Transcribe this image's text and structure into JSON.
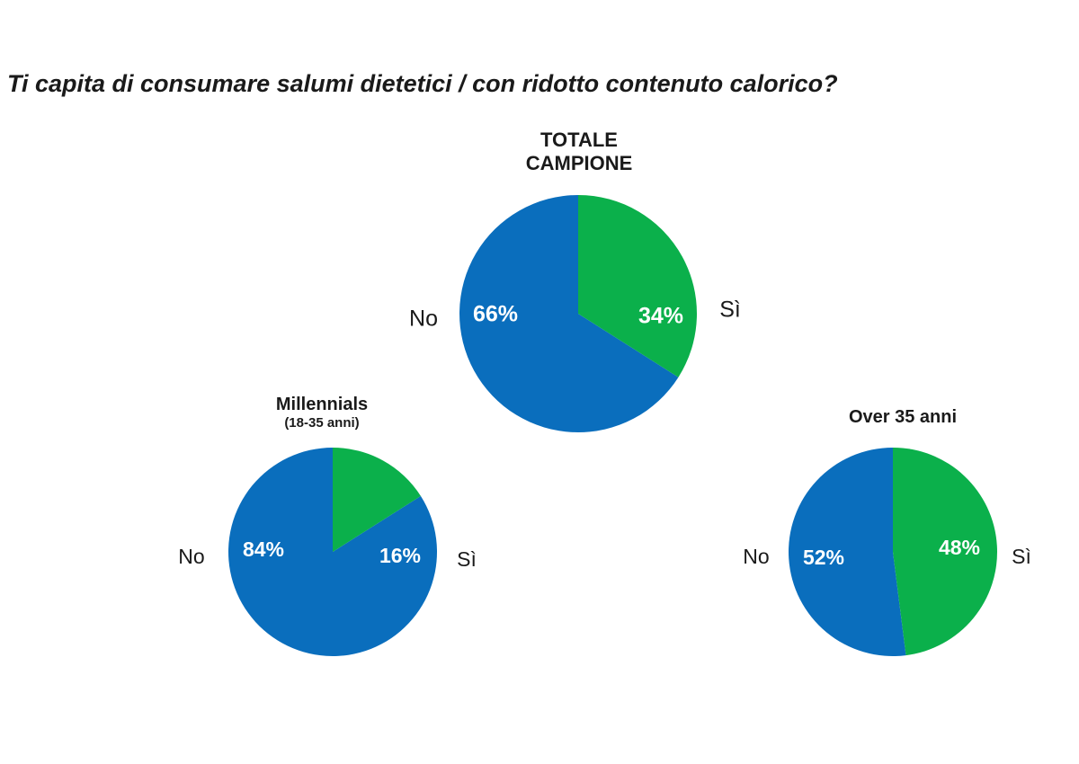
{
  "question": "Ti capita di consumare salumi dietetici / con ridotto contenuto calorico?",
  "colors": {
    "no": "#0a6ebd",
    "si": "#0bb04b"
  },
  "chart_data": [
    {
      "type": "pie",
      "title": "TOTALE CAMPIONE",
      "title_lines": [
        "TOTALE",
        "CAMPIONE"
      ],
      "subtitle": "",
      "slices": [
        {
          "label": "No",
          "value": 66,
          "value_label": "66%"
        },
        {
          "label": "Sì",
          "value": 34,
          "value_label": "34%"
        }
      ]
    },
    {
      "type": "pie",
      "title": "Millennials",
      "subtitle": "(18-35 anni)",
      "slices": [
        {
          "label": "No",
          "value": 84,
          "value_label": "84%"
        },
        {
          "label": "Sì",
          "value": 16,
          "value_label": "16%"
        }
      ]
    },
    {
      "type": "pie",
      "title": "Over 35 anni",
      "subtitle": "",
      "slices": [
        {
          "label": "No",
          "value": 52,
          "value_label": "52%"
        },
        {
          "label": "Sì",
          "value": 48,
          "value_label": "48%"
        }
      ]
    }
  ]
}
